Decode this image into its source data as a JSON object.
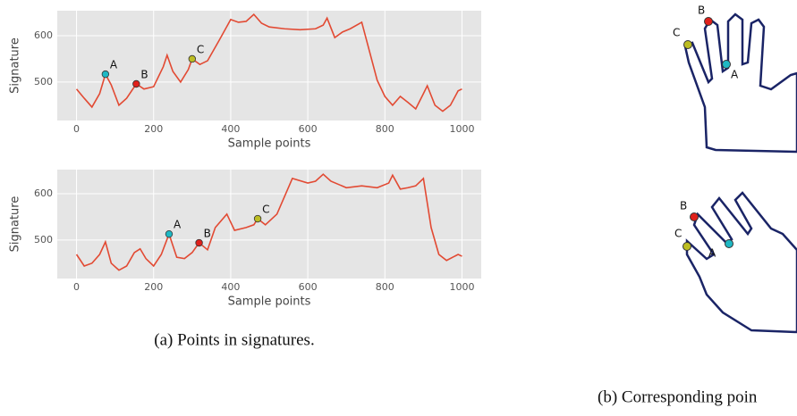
{
  "chart_data": [
    {
      "type": "line",
      "x_label": "Sample points",
      "y_label": "Signature",
      "x": [
        0,
        20,
        40,
        60,
        75,
        90,
        110,
        130,
        155,
        175,
        200,
        225,
        235,
        250,
        270,
        290,
        300,
        320,
        340,
        370,
        400,
        420,
        440,
        460,
        480,
        500,
        540,
        580,
        620,
        640,
        650,
        670,
        690,
        710,
        740,
        780,
        800,
        820,
        840,
        860,
        880,
        900,
        910,
        930,
        950,
        970,
        990,
        1000
      ],
      "series": [
        {
          "color": "#e24a33",
          "values": [
            485,
            465,
            446,
            475,
            517,
            494,
            450,
            465,
            496,
            485,
            490,
            533,
            558,
            523,
            500,
            527,
            550,
            538,
            546,
            590,
            635,
            629,
            631,
            646,
            627,
            619,
            615,
            613,
            615,
            623,
            638,
            596,
            608,
            615,
            629,
            504,
            469,
            450,
            469,
            456,
            442,
            475,
            492,
            450,
            437,
            450,
            481,
            485
          ]
        }
      ],
      "points": [
        {
          "label": "A",
          "x": 75,
          "y": 517,
          "color": "#1fb8c4"
        },
        {
          "label": "B",
          "x": 155,
          "y": 496,
          "color": "#e0201b"
        },
        {
          "label": "C",
          "x": 300,
          "y": 550,
          "color": "#bcbd22"
        }
      ],
      "xlim": [
        -50,
        1050
      ],
      "ylim": [
        417,
        654
      ],
      "xticks": [
        0,
        200,
        400,
        600,
        800,
        1000
      ],
      "yticks": [
        500,
        600
      ],
      "grid": true
    },
    {
      "type": "line",
      "x_label": "Sample points",
      "y_label": "Signature",
      "x": [
        0,
        20,
        40,
        60,
        75,
        90,
        110,
        130,
        150,
        165,
        180,
        200,
        220,
        240,
        260,
        280,
        300,
        318,
        340,
        360,
        390,
        410,
        440,
        460,
        470,
        490,
        520,
        560,
        600,
        620,
        640,
        660,
        700,
        740,
        780,
        810,
        820,
        840,
        860,
        880,
        900,
        920,
        940,
        960,
        990,
        1000
      ],
      "series": [
        {
          "color": "#e24a33",
          "values": [
            469,
            444,
            450,
            469,
            496,
            450,
            435,
            444,
            473,
            481,
            460,
            444,
            469,
            513,
            463,
            460,
            473,
            494,
            479,
            527,
            556,
            521,
            527,
            533,
            546,
            533,
            556,
            633,
            623,
            627,
            642,
            627,
            613,
            617,
            613,
            623,
            640,
            610,
            613,
            617,
            633,
            527,
            469,
            456,
            469,
            465
          ]
        }
      ],
      "points": [
        {
          "label": "A",
          "x": 240,
          "y": 513,
          "color": "#1fb8c4"
        },
        {
          "label": "B",
          "x": 318,
          "y": 494,
          "color": "#e0201b"
        },
        {
          "label": "C",
          "x": 470,
          "y": 546,
          "color": "#bcbd22"
        }
      ],
      "xlim": [
        -50,
        1050
      ],
      "ylim": [
        417,
        652
      ],
      "xticks": [
        0,
        200,
        400,
        600,
        800,
        1000
      ],
      "yticks": [
        500,
        600
      ],
      "grid": true
    }
  ],
  "captions": [
    "(a) Points in signatures.",
    "(b) Corresponding poin"
  ],
  "hands": [
    {
      "labels": [
        "A",
        "B",
        "C"
      ]
    },
    {
      "labels": [
        "A",
        "B",
        "C"
      ]
    }
  ]
}
